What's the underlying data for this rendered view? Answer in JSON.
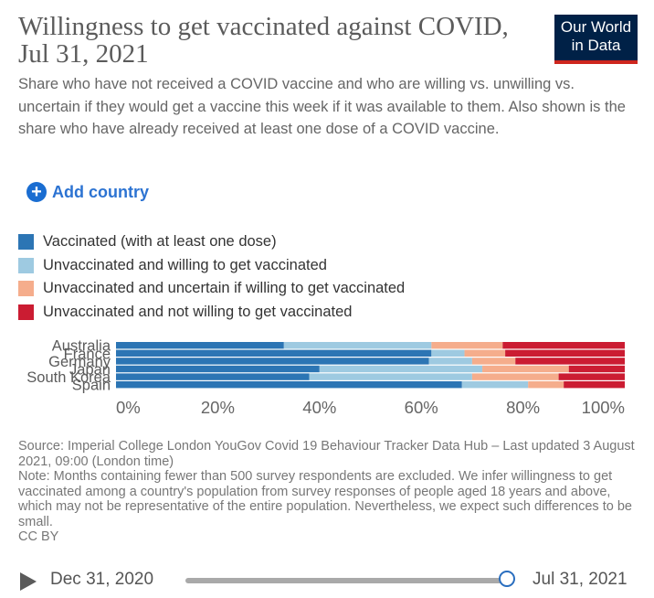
{
  "header": {
    "title": "Willingness to get vaccinated against COVID, Jul 31, 2021",
    "subtitle": "Share who have not received a COVID vaccine and who are willing vs. unwilling vs. uncertain if they would get a vaccine this week if it was available to them. Also shown is the share who have already received at least one dose of a COVID vaccine.",
    "logo_line1": "Our World",
    "logo_line2": "in Data"
  },
  "controls": {
    "add_country_label": "Add country"
  },
  "colors": {
    "vaccinated": "#2c75b4",
    "willing": "#9ecae1",
    "uncertain": "#f5ad8c",
    "unwilling": "#cb1c32",
    "logo_bg": "#002147",
    "logo_bar": "#ce261e"
  },
  "chart_data": {
    "type": "bar",
    "orientation": "horizontal",
    "stacked": true,
    "categories": [
      "Australia",
      "France",
      "Germany",
      "Japan",
      "South Korea",
      "Spain"
    ],
    "series": [
      {
        "name": "Vaccinated (with at least one dose)",
        "values": [
          33,
          62,
          61.5,
          40,
          38,
          68
        ]
      },
      {
        "name": "Unvaccinated and willing to get vaccinated",
        "values": [
          29,
          6.5,
          8.5,
          32,
          32,
          13
        ]
      },
      {
        "name": "Unvaccinated and uncertain if willing to get vaccinated",
        "values": [
          14,
          8,
          8.5,
          17,
          17,
          7
        ]
      },
      {
        "name": "Unvaccinated and not willing to get vaccinated",
        "values": [
          24,
          23.5,
          21.5,
          11,
          13,
          12
        ]
      }
    ],
    "xlim": [
      0,
      100
    ],
    "xticks": [
      "0%",
      "20%",
      "40%",
      "60%",
      "80%",
      "100%"
    ],
    "xlabel": "",
    "ylabel": "",
    "legend_position": "top"
  },
  "footer": {
    "source": "Source: Imperial College London YouGov Covid 19 Behaviour Tracker Data Hub – Last updated 3 August 2021, 09:00 (London time)",
    "note": "Note: Months containing fewer than 500 survey respondents are excluded. We infer willingness to get vaccinated among a country's population from survey responses of people aged 18 years and above, which may not be representative of the entire population. Nevertheless, we expect such differences to be small.",
    "license": "CC BY"
  },
  "timeline": {
    "start_label": "Dec 31, 2020",
    "end_label": "Jul 31, 2021",
    "position": 1.0
  }
}
